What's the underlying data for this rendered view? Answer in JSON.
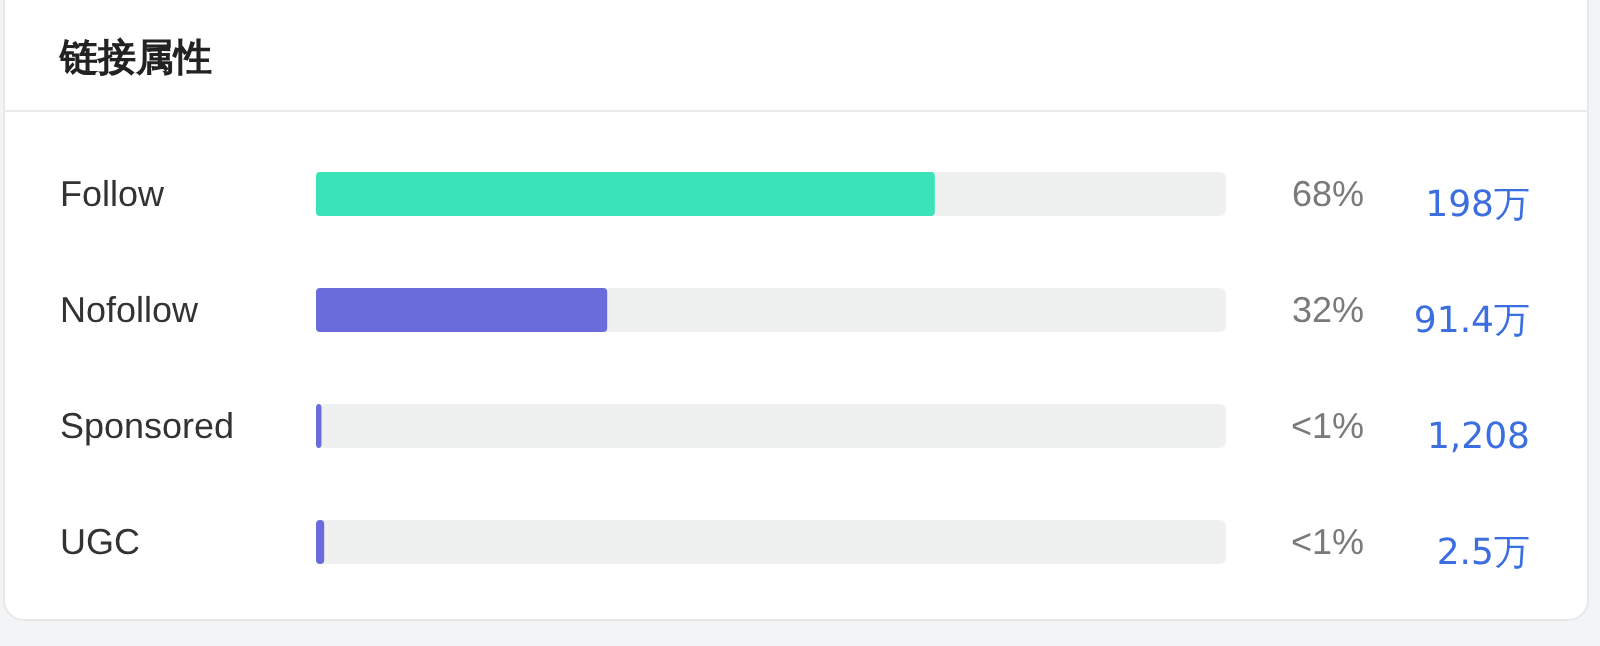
{
  "chart_data": {
    "type": "bar",
    "orientation": "horizontal",
    "title": "链接属性",
    "categories": [
      "Follow",
      "Nofollow",
      "Sponsored",
      "UGC"
    ],
    "values": [
      68,
      32,
      0.6,
      0.9
    ],
    "colors": [
      "#3ae4b8",
      "#6a6cdc",
      "#6a6cdc",
      "#6a6cdc"
    ],
    "xlim": [
      0,
      100
    ],
    "tick_labels": "y",
    "value_labels": [
      "68%",
      "32%",
      "<1%",
      "<1%"
    ],
    "annotations": [
      "198万",
      "91.4万",
      "1,208",
      "2.5万"
    ]
  }
}
